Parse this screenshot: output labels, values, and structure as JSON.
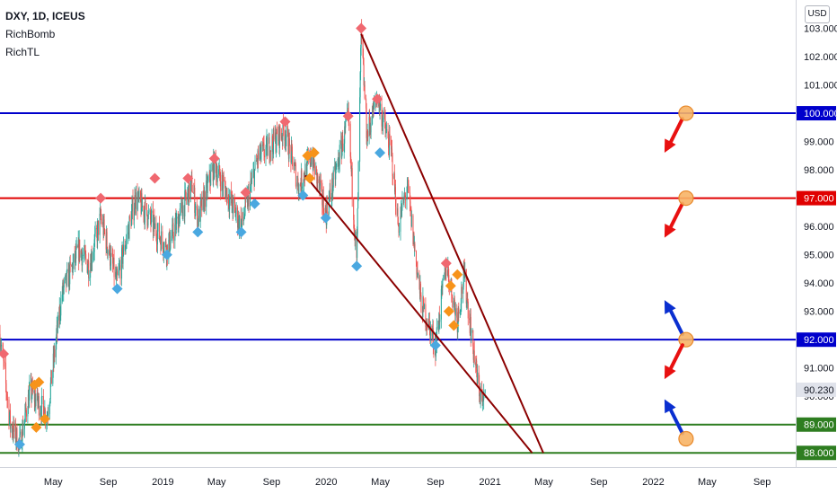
{
  "header": {
    "symbol_title": "DXY, 1D, ICEUS",
    "indicators": [
      "RichBomb",
      "RichTL"
    ],
    "currency_badge": "USD"
  },
  "colors": {
    "up": "#26a69a",
    "down": "#ef5350",
    "blue_line": "#0000cc",
    "red_line": "#e00000",
    "green_line": "#2e7d20",
    "trend_line": "#8b0000",
    "signal_top": "#f06870",
    "signal_bottom": "#4aa8e0",
    "signal_orange": "#f7931a",
    "arrow_red": "#e81010",
    "arrow_blue": "#0a2fd0",
    "circle_fill": "#f7b466"
  },
  "chart_data": {
    "type": "candlestick",
    "ylim": [
      87.5,
      104.0
    ],
    "xlim": [
      "2018-01-02",
      "2022-11-15"
    ],
    "y_ticks": [
      "103.000",
      "102.000",
      "101.000",
      "100.000",
      "99.000",
      "98.000",
      "97.000",
      "96.000",
      "95.000",
      "94.000",
      "93.000",
      "92.000",
      "91.000",
      "90.000",
      "89.000",
      "88.000"
    ],
    "x_ticks": [
      {
        "label": "May",
        "date": "2018-05-01"
      },
      {
        "label": "Sep",
        "date": "2018-09-01"
      },
      {
        "label": "2019",
        "date": "2019-01-01"
      },
      {
        "label": "May",
        "date": "2019-05-01"
      },
      {
        "label": "Sep",
        "date": "2019-09-01"
      },
      {
        "label": "2020",
        "date": "2020-01-01"
      },
      {
        "label": "May",
        "date": "2020-05-01"
      },
      {
        "label": "Sep",
        "date": "2020-09-01"
      },
      {
        "label": "2021",
        "date": "2021-01-01"
      },
      {
        "label": "May",
        "date": "2021-05-01"
      },
      {
        "label": "Sep",
        "date": "2021-09-01"
      },
      {
        "label": "2022",
        "date": "2022-01-01"
      },
      {
        "label": "May",
        "date": "2022-05-01"
      },
      {
        "label": "Sep",
        "date": "2022-09-01"
      }
    ],
    "price_path": [
      [
        "2018-01-02",
        92.2
      ],
      [
        "2018-01-25",
        89.0
      ],
      [
        "2018-02-15",
        88.3
      ],
      [
        "2018-03-10",
        90.2
      ],
      [
        "2018-04-10",
        89.5
      ],
      [
        "2018-04-17",
        89.3
      ],
      [
        "2018-05-20",
        93.6
      ],
      [
        "2018-06-28",
        95.2
      ],
      [
        "2018-07-20",
        94.6
      ],
      [
        "2018-08-15",
        96.3
      ],
      [
        "2018-09-20",
        94.0
      ],
      [
        "2018-10-31",
        97.0
      ],
      [
        "2018-11-20",
        96.6
      ],
      [
        "2019-01-10",
        95.2
      ],
      [
        "2019-03-07",
        97.5
      ],
      [
        "2019-03-20",
        96.2
      ],
      [
        "2019-04-26",
        98.2
      ],
      [
        "2019-06-25",
        96.0
      ],
      [
        "2019-08-01",
        98.4
      ],
      [
        "2019-09-30",
        99.4
      ],
      [
        "2019-11-01",
        97.4
      ],
      [
        "2019-11-29",
        98.5
      ],
      [
        "2019-12-31",
        96.4
      ],
      [
        "2020-02-19",
        99.8
      ],
      [
        "2020-03-09",
        94.7
      ],
      [
        "2020-03-19",
        102.8
      ],
      [
        "2020-04-01",
        99.2
      ],
      [
        "2020-04-24",
        100.6
      ],
      [
        "2020-05-26",
        98.5
      ],
      [
        "2020-06-10",
        96.0
      ],
      [
        "2020-06-30",
        97.4
      ],
      [
        "2020-07-31",
        93.3
      ],
      [
        "2020-09-01",
        91.8
      ],
      [
        "2020-09-25",
        94.7
      ],
      [
        "2020-10-20",
        92.7
      ],
      [
        "2020-11-04",
        94.3
      ],
      [
        "2020-12-04",
        90.5
      ],
      [
        "2020-12-17",
        89.7
      ],
      [
        "2020-12-22",
        90.23
      ]
    ],
    "last_price": "90.230",
    "horizontal_levels": [
      {
        "price": 100.0,
        "label": "100.000",
        "color": "#0000cc"
      },
      {
        "price": 97.0,
        "label": "97.000",
        "color": "#e00000"
      },
      {
        "price": 92.0,
        "label": "92.000",
        "color": "#0000cc"
      },
      {
        "price": 89.0,
        "label": "89.000",
        "color": "#2e7d20"
      },
      {
        "price": 88.0,
        "label": "88.000",
        "color": "#2e7d20"
      }
    ],
    "trend_lines": [
      {
        "from": [
          "2020-03-19",
          102.8
        ],
        "to": [
          "2021-04-30",
          88.0
        ]
      },
      {
        "from": [
          "2019-11-15",
          97.8
        ],
        "to": [
          "2021-04-05",
          88.0
        ]
      }
    ],
    "signals": [
      {
        "date": "2018-01-10",
        "price": 91.5,
        "kind": "down"
      },
      {
        "date": "2018-02-15",
        "price": 88.3,
        "kind": "bottom"
      },
      {
        "date": "2018-03-20",
        "price": 90.4,
        "kind": "orange"
      },
      {
        "date": "2018-03-30",
        "price": 90.5,
        "kind": "orange"
      },
      {
        "date": "2018-03-24",
        "price": 88.9,
        "kind": "orange"
      },
      {
        "date": "2018-04-12",
        "price": 89.2,
        "kind": "orange"
      },
      {
        "date": "2018-08-15",
        "price": 97.0,
        "kind": "top"
      },
      {
        "date": "2018-09-21",
        "price": 93.8,
        "kind": "bottom"
      },
      {
        "date": "2018-12-14",
        "price": 97.7,
        "kind": "top"
      },
      {
        "date": "2019-01-10",
        "price": 95.0,
        "kind": "bottom"
      },
      {
        "date": "2019-02-26",
        "price": 97.7,
        "kind": "top"
      },
      {
        "date": "2019-03-20",
        "price": 95.8,
        "kind": "bottom"
      },
      {
        "date": "2019-04-26",
        "price": 98.4,
        "kind": "top"
      },
      {
        "date": "2019-06-25",
        "price": 95.8,
        "kind": "bottom"
      },
      {
        "date": "2019-07-05",
        "price": 97.2,
        "kind": "top"
      },
      {
        "date": "2019-07-25",
        "price": 96.8,
        "kind": "bottom"
      },
      {
        "date": "2019-10-01",
        "price": 99.7,
        "kind": "top"
      },
      {
        "date": "2019-11-20",
        "price": 98.5,
        "kind": "orange"
      },
      {
        "date": "2019-12-05",
        "price": 98.6,
        "kind": "orange"
      },
      {
        "date": "2019-11-25",
        "price": 97.7,
        "kind": "orange"
      },
      {
        "date": "2019-11-10",
        "price": 97.1,
        "kind": "bottom"
      },
      {
        "date": "2019-12-31",
        "price": 96.3,
        "kind": "bottom"
      },
      {
        "date": "2020-02-19",
        "price": 99.9,
        "kind": "top"
      },
      {
        "date": "2020-03-09",
        "price": 94.6,
        "kind": "bottom"
      },
      {
        "date": "2020-03-19",
        "price": 103.0,
        "kind": "top"
      },
      {
        "date": "2020-04-24",
        "price": 100.5,
        "kind": "top"
      },
      {
        "date": "2020-04-30",
        "price": 98.6,
        "kind": "bottom"
      },
      {
        "date": "2020-09-01",
        "price": 91.8,
        "kind": "bottom"
      },
      {
        "date": "2020-09-25",
        "price": 94.7,
        "kind": "top"
      },
      {
        "date": "2020-10-05",
        "price": 93.9,
        "kind": "orange"
      },
      {
        "date": "2020-10-01",
        "price": 93.0,
        "kind": "orange"
      },
      {
        "date": "2020-10-12",
        "price": 92.5,
        "kind": "orange"
      },
      {
        "date": "2020-10-20",
        "price": 94.3,
        "kind": "orange"
      }
    ],
    "projections": [
      {
        "date": "2022-03-15",
        "price": 100.0,
        "arrow": "down",
        "color": "#e81010"
      },
      {
        "date": "2022-03-15",
        "price": 97.0,
        "arrow": "down",
        "color": "#e81010"
      },
      {
        "date": "2022-03-15",
        "price": 92.0,
        "arrow": "up",
        "color": "#0a2fd0"
      },
      {
        "date": "2022-03-15",
        "price": 92.0,
        "arrow": "down",
        "color": "#e81010"
      },
      {
        "date": "2022-03-15",
        "price": 88.5,
        "arrow": "up",
        "color": "#0a2fd0"
      }
    ]
  }
}
